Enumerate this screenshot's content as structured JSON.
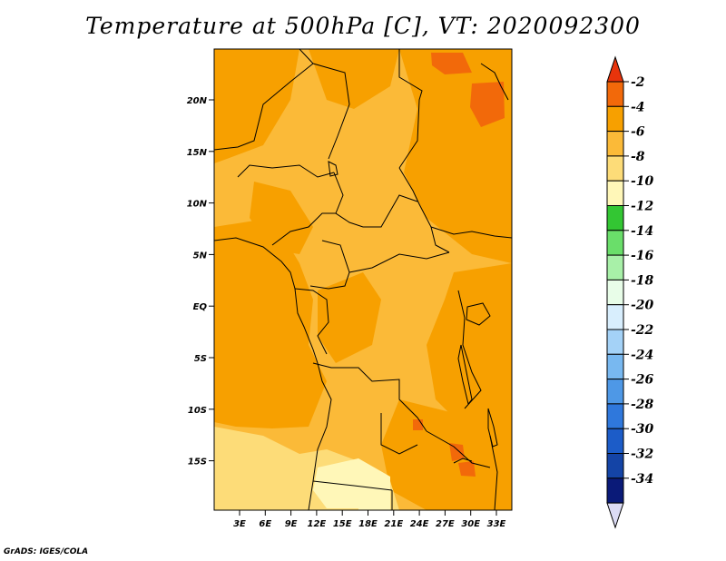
{
  "title": "Temperature at 500hPa [C], VT: 2020092300",
  "credit": "GrADS: IGES/COLA",
  "map": {
    "lat_ticks": [
      "20N",
      "15N",
      "10N",
      "5N",
      "EQ",
      "5S",
      "10S",
      "15S"
    ],
    "lon_ticks": [
      "3E",
      "6E",
      "9E",
      "12E",
      "15E",
      "18E",
      "21E",
      "24E",
      "27E",
      "30E",
      "33E"
    ]
  },
  "colorbar": {
    "labels": [
      "-2",
      "-4",
      "-6",
      "-8",
      "-10",
      "-12",
      "-14",
      "-16",
      "-18",
      "-20",
      "-22",
      "-24",
      "-26",
      "-28",
      "-30",
      "-32",
      "-34"
    ],
    "colors": [
      "#e8340c",
      "#f2690a",
      "#f7a000",
      "#fbba38",
      "#fddc78",
      "#fff7b8",
      "#33c633",
      "#6ade6a",
      "#a8f0a8",
      "#e8fde8",
      "#d8eefd",
      "#a4d2f7",
      "#78b8f0",
      "#4e98e6",
      "#2f78dc",
      "#1c5cc8",
      "#1444a6",
      "#0a1a78"
    ],
    "bottom_arrow_color": "#dcdcf5"
  },
  "palette": {
    "t_2_4": "#f2690a",
    "t_4_6": "#f7a000",
    "t_6_8": "#fbba38",
    "t_8_10": "#fddc78",
    "t_10_12": "#fff7b8"
  }
}
